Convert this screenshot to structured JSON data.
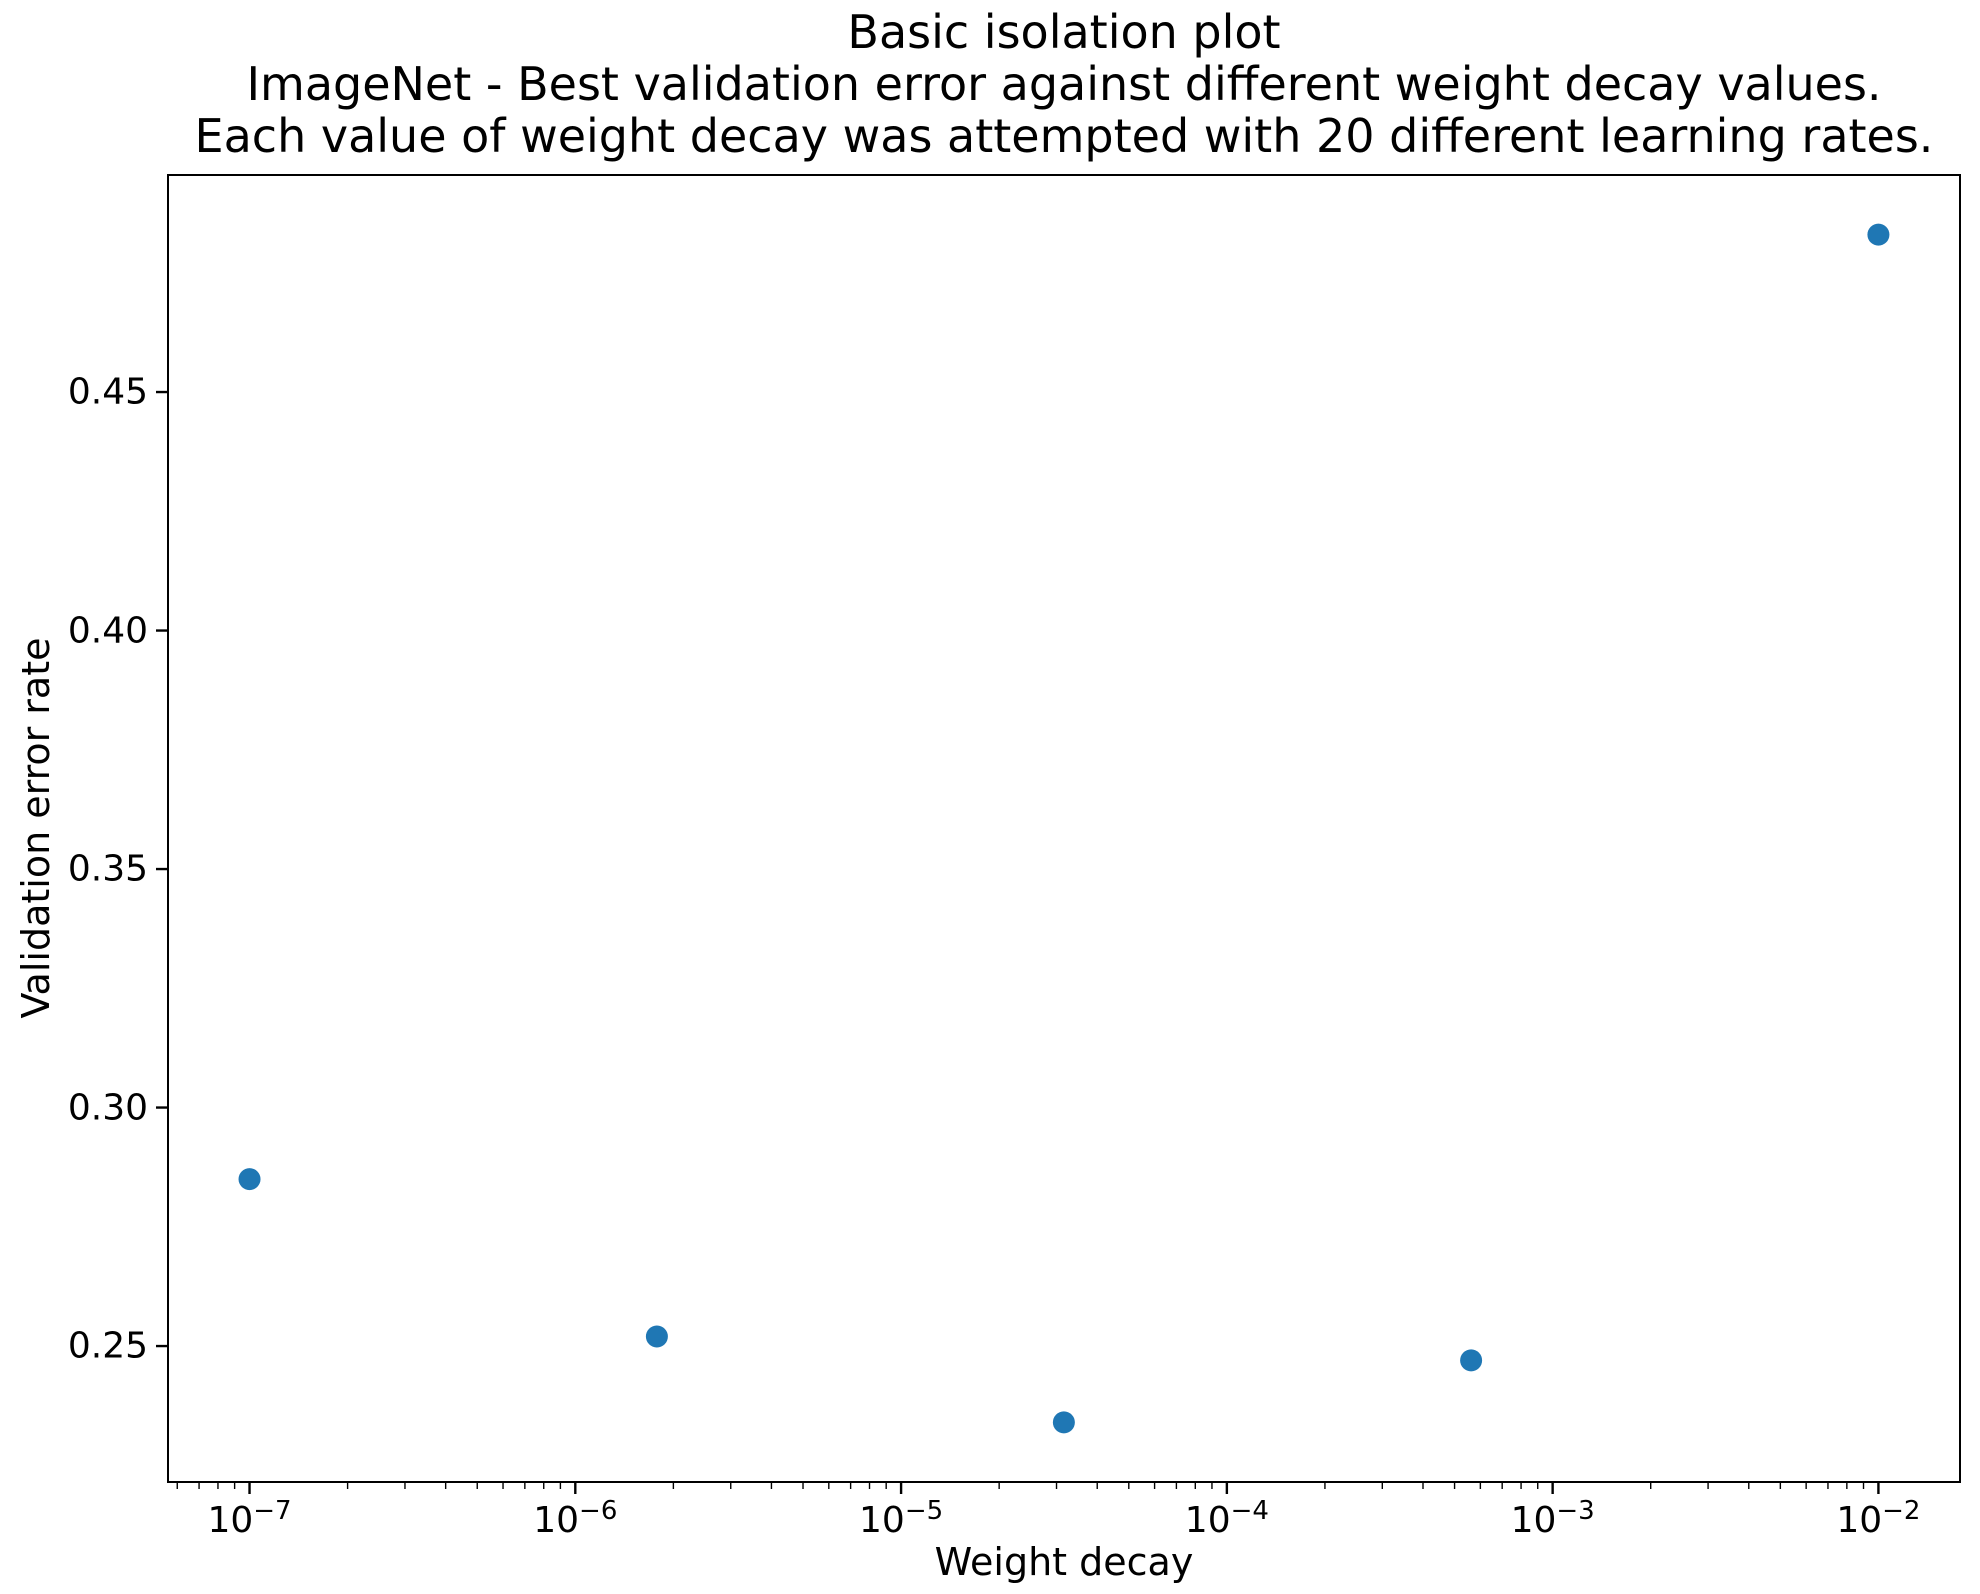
{
  "figure": {
    "title_lines": [
      "Basic isolation plot",
      "ImageNet - Best validation error against different weight decay values.",
      "Each value of weight decay was attempted with 20 different learning rates."
    ],
    "background_color": "#ffffff",
    "text_color": "#000000"
  },
  "chart_data": {
    "type": "scatter",
    "title": "Basic isolation plot\nImageNet - Best validation error against different weight decay values.\nEach value of weight decay was attempted with 20 different learning rates.",
    "xlabel": "Weight decay",
    "ylabel": "Validation error rate",
    "x_scale": "log",
    "y_scale": "linear",
    "x": [
      1e-07,
      1.78e-06,
      3.16e-05,
      0.000562,
      0.01
    ],
    "y": [
      0.285,
      0.252,
      0.234,
      0.247,
      0.483
    ],
    "xlim": [
      5.62e-08,
      0.0178
    ],
    "ylim": [
      0.2215,
      0.4955
    ],
    "x_tick_exponents": [
      -7,
      -6,
      -5,
      -4,
      -3,
      -2
    ],
    "y_ticks": [
      0.25,
      0.3,
      0.35,
      0.4,
      0.45
    ],
    "grid": false,
    "legend": null,
    "marker_color": "#1f77b4",
    "marker_radius_px": 11,
    "spine_color": "#000000"
  }
}
